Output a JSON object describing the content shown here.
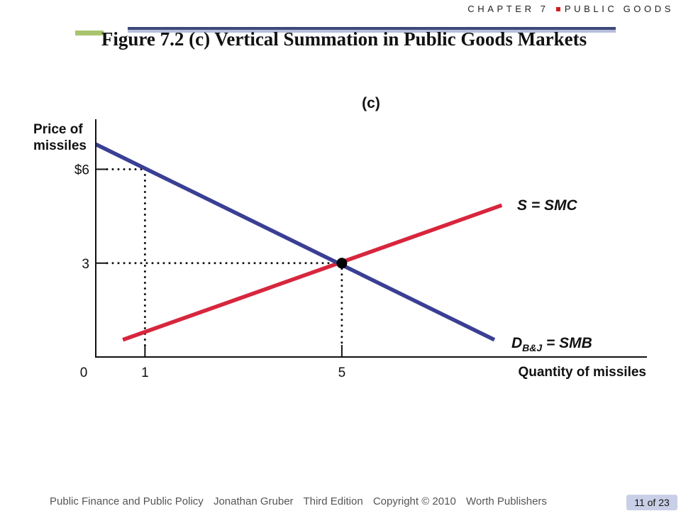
{
  "header": {
    "chapter": "CHAPTER 7",
    "section": "PUBLIC GOODS",
    "title": "Figure 7.2 (c)  Vertical Summation in Public Goods Markets"
  },
  "chart_data": {
    "type": "line",
    "panel_label": "(c)",
    "ylabel_lines": [
      "Price of",
      "missiles"
    ],
    "xlabel": "Quantity of missiles",
    "origin_label": "0",
    "x_ticks": [
      {
        "value": 1,
        "label": "1"
      },
      {
        "value": 5,
        "label": "5"
      }
    ],
    "y_ticks": [
      {
        "value": 6,
        "label": "$6"
      },
      {
        "value": 3,
        "label": "3"
      }
    ],
    "xlim": [
      0,
      11.2
    ],
    "ylim": [
      0,
      7.6
    ],
    "series": [
      {
        "name": "S = SMC",
        "color": "#d7263d",
        "points": [
          [
            0.55,
            0.55
          ],
          [
            8.25,
            4.85
          ]
        ]
      },
      {
        "name": "D B&J = SMB",
        "name_main": "D",
        "name_sub": "B&J",
        "name_rest": " = SMB",
        "color": "#3a3f94",
        "points": [
          [
            0,
            6.8
          ],
          [
            8.1,
            0.55
          ]
        ]
      }
    ],
    "equilibrium": {
      "x": 5,
      "y": 3
    },
    "reference_lines": [
      {
        "x": 1,
        "y": 6
      },
      {
        "x": 5,
        "y": 3
      }
    ]
  },
  "footer": {
    "book": "Public Finance and Public Policy",
    "author": "Jonathan Gruber",
    "edition": "Third Edition",
    "copyright": "Copyright © 2010",
    "publisher": "Worth Publishers",
    "page": "11 of 23"
  }
}
